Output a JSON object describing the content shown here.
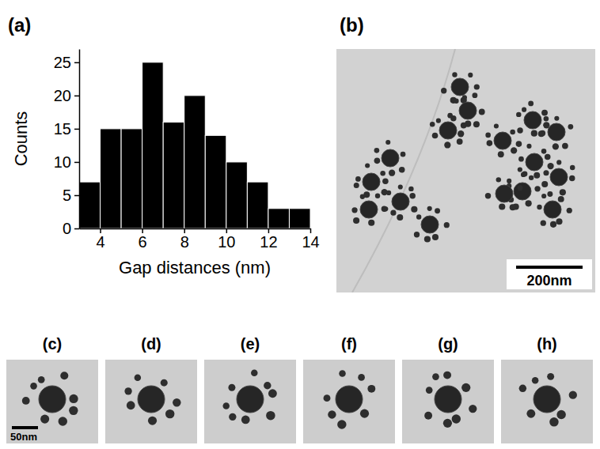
{
  "chart_data": {
    "type": "histogram",
    "x_label": "Gap distances (nm)",
    "y_label": "Counts",
    "bins": [
      3,
      4,
      5,
      6,
      7,
      8,
      9,
      10,
      11,
      12,
      13,
      14
    ],
    "values": [
      7,
      15,
      15,
      25,
      16,
      20,
      14,
      10,
      7,
      3,
      3
    ],
    "color": "#000000",
    "xlim": [
      3,
      14
    ],
    "ylim": [
      0,
      27
    ],
    "xticks": [
      4,
      6,
      8,
      10,
      12,
      14
    ],
    "yticks": [
      0,
      5,
      10,
      15,
      20,
      25
    ]
  },
  "figure": {
    "histogram_label": "(a)",
    "images": [
      {
        "label": "(b)",
        "scale_bar": "200nm"
      },
      {
        "label": "(c)",
        "scale_bar": "50nm"
      },
      {
        "label": "(d)"
      },
      {
        "label": "(e)"
      },
      {
        "label": "(f)"
      },
      {
        "label": "(g)"
      },
      {
        "label": "(h)"
      }
    ]
  }
}
